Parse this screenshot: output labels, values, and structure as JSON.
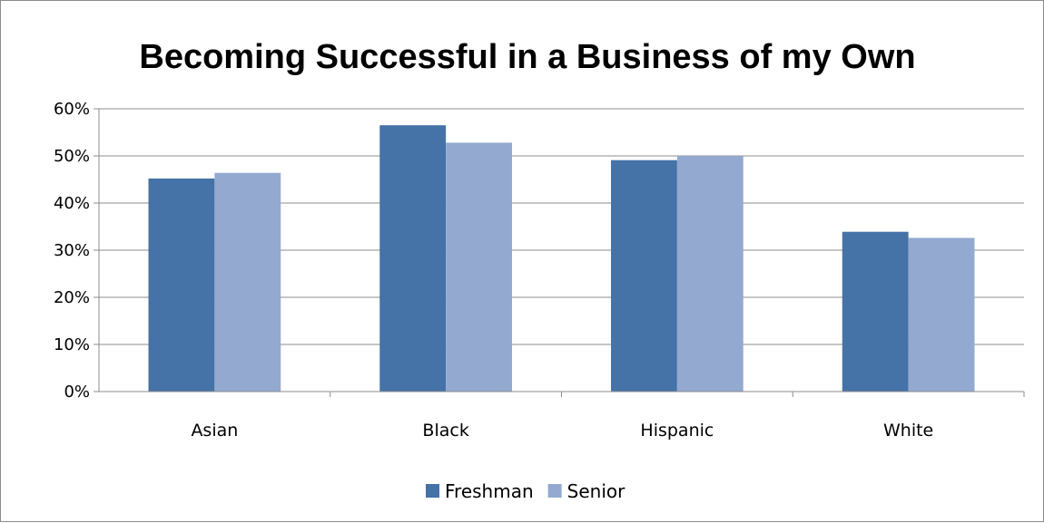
{
  "chart_data": {
    "type": "bar",
    "title": "Becoming Successful in a Business of my Own",
    "categories": [
      "Asian",
      "Black",
      "Hispanic",
      "White"
    ],
    "series": [
      {
        "name": "Freshman",
        "values": [
          45.2,
          56.5,
          49.1,
          33.9
        ],
        "color": "#4572a7"
      },
      {
        "name": "Senior",
        "values": [
          46.4,
          52.8,
          50.0,
          32.6
        ],
        "color": "#93a9d0"
      }
    ],
    "yticks": [
      "0%",
      "10%",
      "20%",
      "30%",
      "40%",
      "50%",
      "60%"
    ],
    "ylim": [
      0,
      60
    ],
    "grid": true,
    "legend": "bottom"
  }
}
